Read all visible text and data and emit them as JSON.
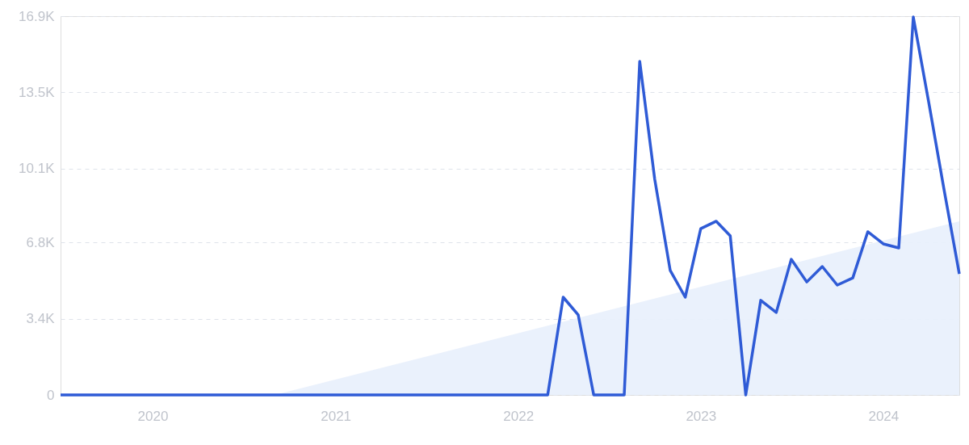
{
  "chart_data": {
    "type": "line",
    "xlim": [
      "2019-07",
      "2024-06"
    ],
    "xticks": [
      {
        "value": "2020",
        "label": "2020"
      },
      {
        "value": "2021",
        "label": "2021"
      },
      {
        "value": "2022",
        "label": "2022"
      },
      {
        "value": "2023",
        "label": "2023"
      },
      {
        "value": "2024",
        "label": "2024"
      }
    ],
    "ylim": [
      0,
      16900
    ],
    "yticks": [
      0,
      {
        "value": 3400,
        "label": "3.4K"
      },
      {
        "value": 6800,
        "label": "6.8K"
      },
      {
        "value": 10100,
        "label": "10.1K"
      },
      {
        "value": 13500,
        "label": "13.5K"
      },
      {
        "value": 16900,
        "label": "16.9K"
      }
    ],
    "grid": "y",
    "marker": "none",
    "line_style": "solid",
    "series": [
      {
        "type": "area",
        "color": "#e8f0fc",
        "x": [
          "2020-09",
          "2024-06"
        ],
        "values": [
          0,
          7750
        ]
      },
      {
        "type": "line",
        "color": "#2f5bd6",
        "x": [
          "2019-07",
          "2019-08",
          "2019-09",
          "2019-10",
          "2019-11",
          "2019-12",
          "2020-01",
          "2020-02",
          "2020-03",
          "2020-04",
          "2020-05",
          "2020-06",
          "2020-07",
          "2020-08",
          "2020-09",
          "2020-10",
          "2020-11",
          "2020-12",
          "2021-01",
          "2021-02",
          "2021-03",
          "2021-04",
          "2021-05",
          "2021-06",
          "2021-07",
          "2021-08",
          "2021-09",
          "2021-10",
          "2021-11",
          "2021-12",
          "2022-01",
          "2022-02",
          "2022-03",
          "2022-04",
          "2022-05",
          "2022-06",
          "2022-07",
          "2022-08",
          "2022-09",
          "2022-10",
          "2022-11",
          "2022-12",
          "2023-01",
          "2023-02",
          "2023-03",
          "2023-04",
          "2023-05",
          "2023-06",
          "2023-07",
          "2023-08",
          "2023-09",
          "2023-10",
          "2023-11",
          "2023-12",
          "2024-01",
          "2024-02",
          "2024-03",
          "2024-04",
          "2024-05",
          "2024-06"
        ],
        "values": [
          0,
          0,
          0,
          0,
          0,
          0,
          0,
          0,
          0,
          0,
          0,
          0,
          0,
          0,
          0,
          0,
          0,
          0,
          0,
          0,
          0,
          0,
          0,
          0,
          0,
          0,
          0,
          0,
          0,
          0,
          0,
          0,
          0,
          4360,
          3570,
          0,
          0,
          0,
          14880,
          9620,
          5550,
          4360,
          7420,
          7750,
          7100,
          0,
          4220,
          3680,
          6050,
          5040,
          5730,
          4900,
          5220,
          7280,
          6740,
          6560,
          16860,
          13040,
          9220,
          5400
        ]
      }
    ]
  }
}
